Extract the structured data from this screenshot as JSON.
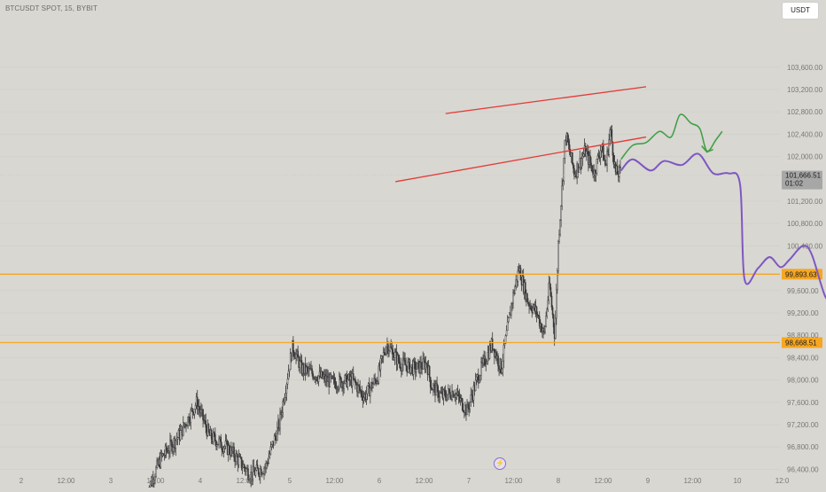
{
  "header": {
    "symbol_title": "BTCUSDT SPOT, 15, BYBIT",
    "currency_button": "USDT"
  },
  "colors": {
    "background": "#d8d7d2",
    "candle": "#3a3a3a",
    "level_line": "#f5a623",
    "level_label_bg": "#f5a623",
    "channel_line": "#e53935",
    "projection_primary": "#7e57c2",
    "projection_alt": "#43a047",
    "price_label_bg": "#a7a7a7"
  },
  "icons": {
    "snapshot": "lightning-icon"
  },
  "chart_data": {
    "type": "candlestick",
    "price_axis": {
      "ticks": [
        "103,600.00",
        "103,200.00",
        "102,800.00",
        "102,400.00",
        "102,000.00",
        "101,200.00",
        "100,800.00",
        "100,400.00",
        "99,600.00",
        "99,200.00",
        "98,800.00",
        "98,400.00",
        "98,000.00",
        "97,600.00",
        "97,200.00",
        "96,800.00",
        "96,400.00",
        "96,000.00"
      ],
      "ylim": [
        95900,
        104000
      ]
    },
    "time_axis": {
      "ticks": [
        "2",
        "12:00",
        "3",
        "12:00",
        "4",
        "12:00",
        "5",
        "12:00",
        "6",
        "12:00",
        "7",
        "12:00",
        "8",
        "12:00",
        "9",
        "12:00",
        "10",
        "12:0"
      ]
    },
    "current_price": {
      "value": 101666.51,
      "label": "101,666.51",
      "countdown": "01:02"
    },
    "horizontal_levels": [
      {
        "value": 99893.63,
        "label": "99,893.63"
      },
      {
        "value": 98668.51,
        "label": "98,668.51"
      }
    ],
    "channel_lines": [
      {
        "from": [
          5.2,
          101550
        ],
        "to": [
          8.0,
          102350
        ]
      },
      {
        "from": [
          5.76,
          102770
        ],
        "to": [
          8.0,
          103250
        ]
      }
    ],
    "candle_path": [
      [
        2.42,
        95980
      ],
      [
        2.58,
        96600
      ],
      [
        2.78,
        97000
      ],
      [
        2.98,
        97600
      ],
      [
        3.12,
        97000
      ],
      [
        3.35,
        96750
      ],
      [
        3.58,
        96300
      ],
      [
        3.75,
        96450
      ],
      [
        3.9,
        97200
      ],
      [
        4.05,
        98600
      ],
      [
        4.15,
        98200
      ],
      [
        4.3,
        98100
      ],
      [
        4.5,
        97950
      ],
      [
        4.72,
        98000
      ],
      [
        4.85,
        97700
      ],
      [
        5.0,
        98050
      ],
      [
        5.1,
        98650
      ],
      [
        5.25,
        98300
      ],
      [
        5.42,
        98200
      ],
      [
        5.55,
        98300
      ],
      [
        5.6,
        97900
      ],
      [
        5.72,
        97700
      ],
      [
        5.85,
        97800
      ],
      [
        6.0,
        97450
      ],
      [
        6.12,
        98050
      ],
      [
        6.28,
        98650
      ],
      [
        6.38,
        98200
      ],
      [
        6.5,
        99400
      ],
      [
        6.58,
        100000
      ],
      [
        6.68,
        99400
      ],
      [
        6.78,
        99200
      ],
      [
        6.86,
        98800
      ],
      [
        6.92,
        99700
      ],
      [
        6.98,
        98800
      ],
      [
        7.02,
        100500
      ],
      [
        7.06,
        101400
      ],
      [
        7.1,
        102400
      ],
      [
        7.2,
        101700
      ],
      [
        7.32,
        102100
      ],
      [
        7.42,
        101700
      ],
      [
        7.5,
        102200
      ],
      [
        7.55,
        101800
      ],
      [
        7.6,
        102500
      ],
      [
        7.66,
        101700
      ],
      [
        7.72,
        101700
      ]
    ],
    "projection_primary": [
      [
        7.72,
        101750
      ],
      [
        7.85,
        101950
      ],
      [
        8.05,
        101750
      ],
      [
        8.2,
        101920
      ],
      [
        8.4,
        101850
      ],
      [
        8.58,
        102050
      ],
      [
        8.75,
        101700
      ],
      [
        8.92,
        101700
      ],
      [
        9.05,
        101500
      ],
      [
        9.1,
        99800
      ],
      [
        9.25,
        100000
      ],
      [
        9.38,
        100200
      ],
      [
        9.5,
        100020
      ],
      [
        9.6,
        100150
      ],
      [
        9.75,
        100400
      ],
      [
        9.85,
        100250
      ],
      [
        10.0,
        99500
      ],
      [
        10.1,
        99400
      ],
      [
        10.22,
        99150
      ],
      [
        10.35,
        99550
      ],
      [
        10.5,
        99450
      ],
      [
        10.7,
        99580
      ],
      [
        10.9,
        99800
      ],
      [
        11.1,
        100400
      ],
      [
        11.3,
        101200
      ],
      [
        11.5,
        102000
      ]
    ],
    "projection_alt": [
      [
        7.72,
        101950
      ],
      [
        7.85,
        102200
      ],
      [
        8.0,
        102250
      ],
      [
        8.15,
        102450
      ],
      [
        8.28,
        102350
      ],
      [
        8.38,
        102750
      ],
      [
        8.5,
        102600
      ],
      [
        8.6,
        102500
      ],
      [
        8.68,
        102100
      ],
      [
        8.78,
        102300
      ],
      [
        8.85,
        102450
      ]
    ],
    "alt_arrow_tip": [
      8.68,
      102080
    ]
  }
}
